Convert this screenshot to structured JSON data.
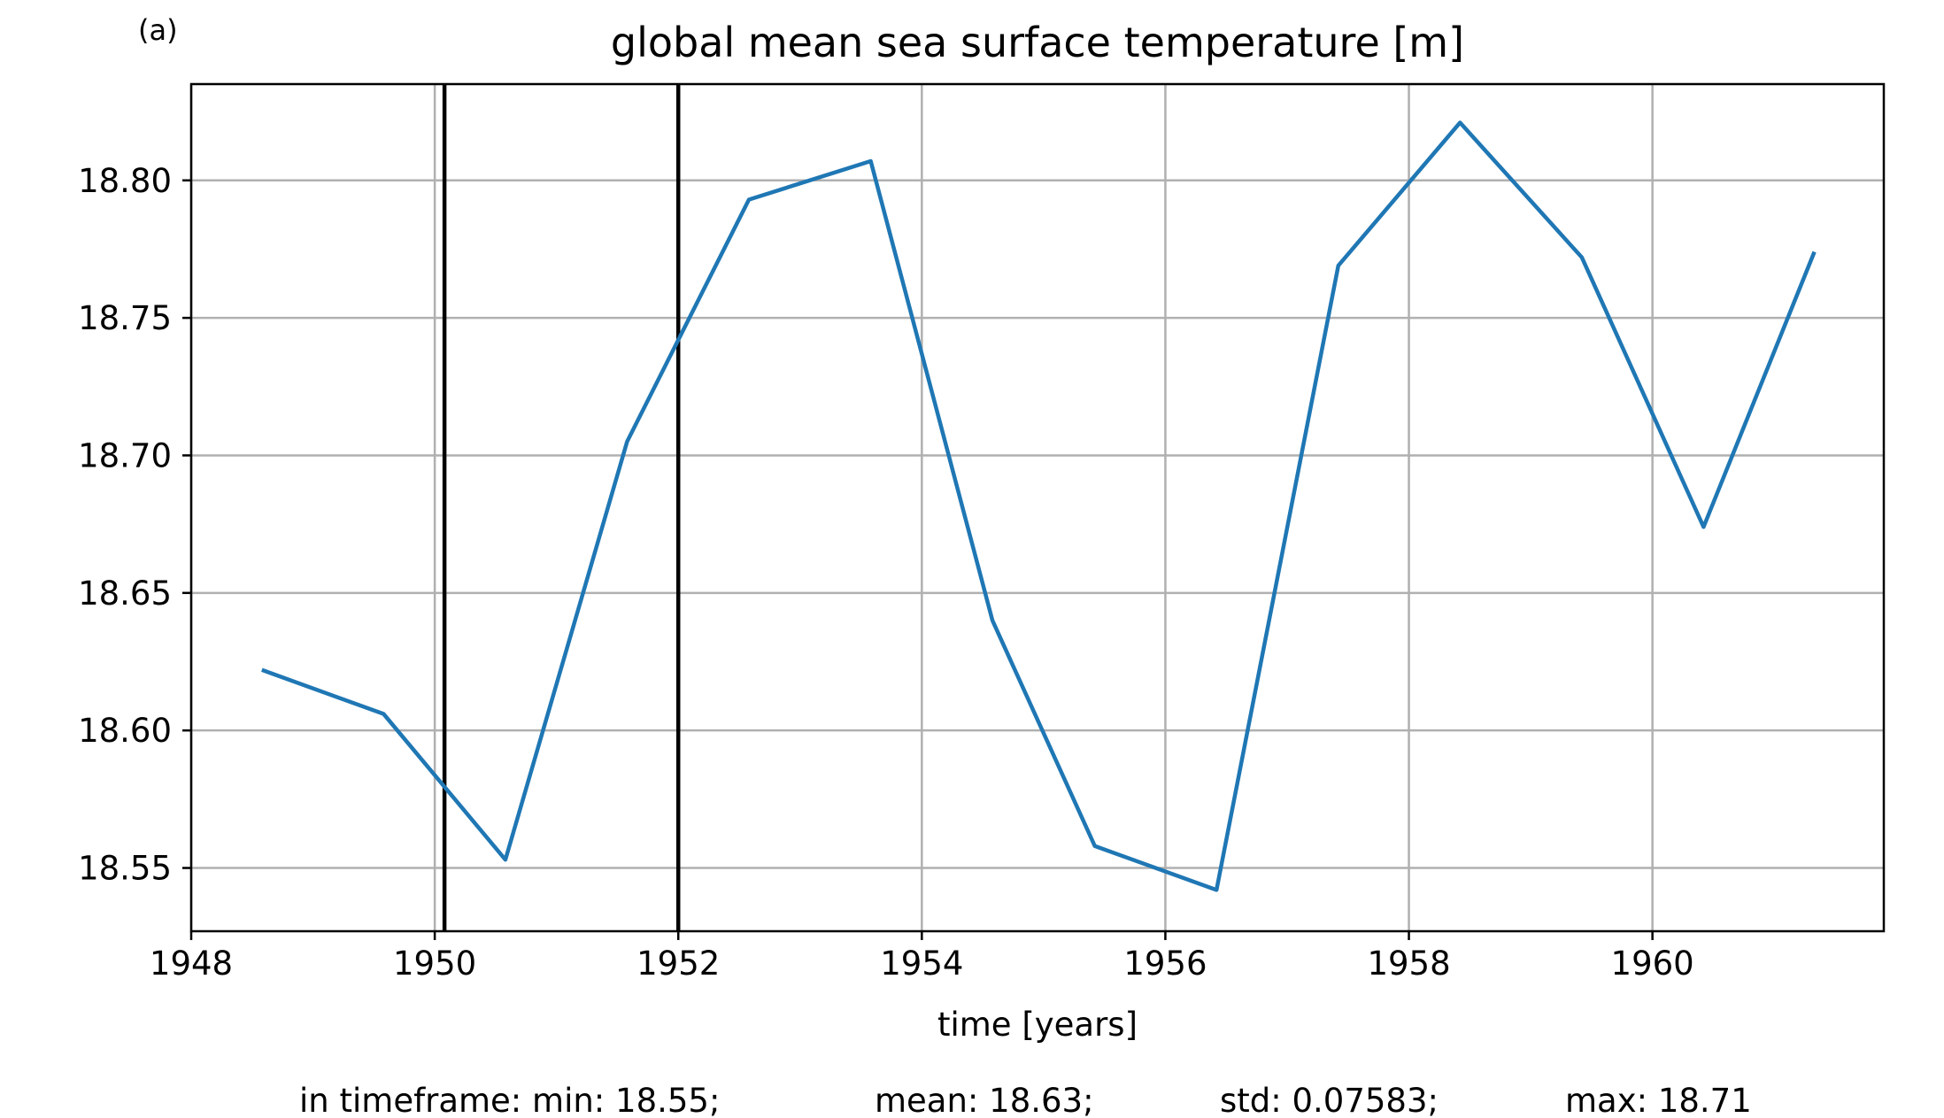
{
  "panel_label": "(a)",
  "footer": {
    "min": "in timeframe: min: 18.55;",
    "mean": "mean: 18.63;",
    "std": "std: 0.07583;",
    "max": "max: 18.71"
  },
  "chart_data": {
    "type": "line",
    "title": "global mean sea surface temperature [m]",
    "xlabel": "time [years]",
    "ylabel": "",
    "xlim": [
      1948.0,
      1961.9
    ],
    "ylim": [
      18.527,
      18.835
    ],
    "xticks": [
      1948,
      1950,
      1952,
      1954,
      1956,
      1958,
      1960
    ],
    "xtick_labels": [
      "1948",
      "1950",
      "1952",
      "1954",
      "1956",
      "1958",
      "1960"
    ],
    "yticks": [
      18.55,
      18.6,
      18.65,
      18.7,
      18.75,
      18.8
    ],
    "ytick_labels": [
      "18.55",
      "18.60",
      "18.65",
      "18.70",
      "18.75",
      "18.80"
    ],
    "grid": true,
    "line_color": "#1f77b4",
    "vlines": [
      1950.08,
      1952.0
    ],
    "vline_color": "#000000",
    "series": [
      {
        "x": [
          1948.58,
          1949.58,
          1950.58,
          1951.58,
          1952.58,
          1953.58,
          1954.58,
          1955.42,
          1956.42,
          1957.42,
          1958.42,
          1959.42,
          1960.42,
          1961.33
        ],
        "values": [
          18.622,
          18.606,
          18.553,
          18.705,
          18.793,
          18.807,
          18.64,
          18.558,
          18.542,
          18.769,
          18.821,
          18.772,
          18.674,
          18.774
        ]
      }
    ]
  }
}
